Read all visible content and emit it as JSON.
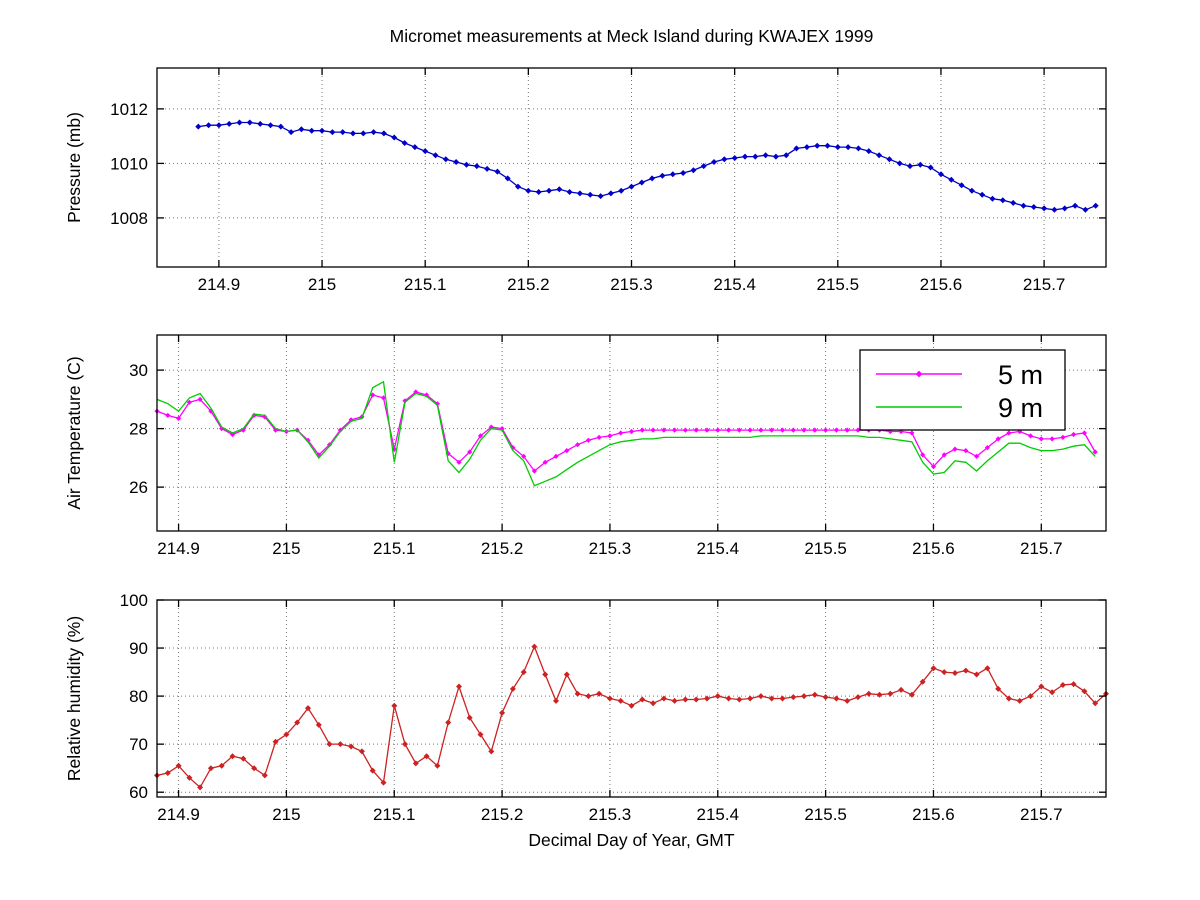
{
  "figure": {
    "title": "Micromet measurements at Meck Island during KWAJEX 1999",
    "xlabel": "Decimal Day of Year, GMT",
    "background_color": "#FFFFFF",
    "text_color": "#000000"
  },
  "chart_data": [
    {
      "name": "pressure",
      "type": "line",
      "ylabel": "Pressure (mb)",
      "xlim": [
        214.84,
        215.76
      ],
      "ylim": [
        1006.2,
        1013.5
      ],
      "xticks": [
        214.9,
        215,
        215.1,
        215.2,
        215.3,
        215.4,
        215.5,
        215.6,
        215.7
      ],
      "xtick_labels": [
        "214.9",
        "215",
        "215.1",
        "215.2",
        "215.3",
        "215.4",
        "215.5",
        "215.6",
        "215.7"
      ],
      "yticks": [
        1008,
        1010,
        1012
      ],
      "ytick_labels": [
        "1008",
        "1010",
        "1012"
      ],
      "grid": true,
      "legend": null,
      "series": [
        {
          "key": "pressure",
          "label": "Pressure",
          "color": "#0000C8",
          "marker": "diamond",
          "marker_size": 3,
          "x_start": 214.88,
          "x_step": 0.01,
          "values": [
            1011.35,
            1011.4,
            1011.4,
            1011.45,
            1011.5,
            1011.5,
            1011.45,
            1011.4,
            1011.35,
            1011.15,
            1011.25,
            1011.2,
            1011.2,
            1011.15,
            1011.15,
            1011.1,
            1011.1,
            1011.15,
            1011.1,
            1010.95,
            1010.75,
            1010.6,
            1010.45,
            1010.3,
            1010.15,
            1010.05,
            1009.95,
            1009.9,
            1009.8,
            1009.7,
            1009.45,
            1009.15,
            1009.0,
            1008.95,
            1009.0,
            1009.05,
            1008.95,
            1008.9,
            1008.85,
            1008.8,
            1008.9,
            1009.0,
            1009.15,
            1009.3,
            1009.45,
            1009.55,
            1009.6,
            1009.65,
            1009.75,
            1009.9,
            1010.05,
            1010.15,
            1010.2,
            1010.25,
            1010.25,
            1010.3,
            1010.25,
            1010.3,
            1010.55,
            1010.6,
            1010.65,
            1010.65,
            1010.6,
            1010.6,
            1010.55,
            1010.45,
            1010.3,
            1010.15,
            1010.0,
            1009.9,
            1009.95,
            1009.85,
            1009.6,
            1009.4,
            1009.2,
            1009.0,
            1008.85,
            1008.7,
            1008.65,
            1008.55,
            1008.45,
            1008.4,
            1008.35,
            1008.3,
            1008.35,
            1008.45,
            1008.3,
            1008.45
          ]
        }
      ]
    },
    {
      "name": "air-temperature",
      "type": "line",
      "ylabel": "Air Temperature (C)",
      "xlim": [
        214.88,
        215.76
      ],
      "ylim": [
        24.5,
        31.2
      ],
      "xticks": [
        214.9,
        215,
        215.1,
        215.2,
        215.3,
        215.4,
        215.5,
        215.6,
        215.7
      ],
      "xtick_labels": [
        "214.9",
        "215",
        "215.1",
        "215.2",
        "215.3",
        "215.4",
        "215.5",
        "215.6",
        "215.7"
      ],
      "yticks": [
        26,
        28,
        30
      ],
      "ytick_labels": [
        "26",
        "28",
        "30"
      ],
      "grid": true,
      "legend": [
        {
          "label": "5 m",
          "color": "#FF00FF",
          "marker": "diamond"
        },
        {
          "label": "9 m",
          "color": "#00CC00",
          "marker": null
        }
      ],
      "series": [
        {
          "key": "temp-5m",
          "label": "5 m",
          "color": "#FF00FF",
          "marker": "diamond",
          "marker_size": 2.6,
          "x_start": 214.88,
          "x_step": 0.01,
          "values": [
            28.6,
            28.45,
            28.35,
            28.9,
            29.0,
            28.6,
            28.0,
            27.8,
            27.95,
            28.45,
            28.4,
            27.95,
            27.9,
            27.95,
            27.6,
            27.1,
            27.45,
            27.95,
            28.3,
            28.4,
            29.15,
            29.05,
            27.3,
            28.95,
            29.25,
            29.15,
            28.85,
            27.15,
            26.85,
            27.2,
            27.75,
            28.05,
            28.0,
            27.35,
            27.05,
            26.55,
            26.85,
            27.05,
            27.25,
            27.45,
            27.6,
            27.7,
            27.75,
            27.85,
            27.9,
            27.95,
            27.95,
            27.95,
            27.95,
            27.95,
            27.95,
            27.95,
            27.95,
            27.95,
            27.95,
            27.95,
            27.95,
            27.95,
            27.95,
            27.95,
            27.95,
            27.95,
            27.95,
            27.95,
            27.95,
            27.95,
            27.95,
            27.95,
            27.9,
            27.9,
            27.85,
            27.1,
            26.7,
            27.1,
            27.3,
            27.25,
            27.05,
            27.35,
            27.65,
            27.85,
            27.9,
            27.75,
            27.65,
            27.65,
            27.7,
            27.8,
            27.85,
            27.2
          ]
        },
        {
          "key": "temp-9m",
          "label": "9 m",
          "color": "#00CC00",
          "marker": null,
          "marker_size": 0,
          "x_start": 214.88,
          "x_step": 0.01,
          "values": [
            29.0,
            28.85,
            28.6,
            29.05,
            29.2,
            28.7,
            28.05,
            27.85,
            28.0,
            28.5,
            28.45,
            28.0,
            27.9,
            27.95,
            27.55,
            27.0,
            27.4,
            27.9,
            28.25,
            28.35,
            29.4,
            29.6,
            26.85,
            28.9,
            29.2,
            29.1,
            28.8,
            26.9,
            26.5,
            26.95,
            27.6,
            28.0,
            27.95,
            27.25,
            26.9,
            26.05,
            26.2,
            26.35,
            26.6,
            26.85,
            27.05,
            27.25,
            27.45,
            27.55,
            27.6,
            27.65,
            27.65,
            27.7,
            27.7,
            27.7,
            27.7,
            27.7,
            27.7,
            27.7,
            27.7,
            27.7,
            27.75,
            27.75,
            27.75,
            27.75,
            27.75,
            27.75,
            27.75,
            27.75,
            27.75,
            27.75,
            27.7,
            27.7,
            27.65,
            27.6,
            27.55,
            26.85,
            26.45,
            26.5,
            26.9,
            26.85,
            26.55,
            26.9,
            27.2,
            27.5,
            27.5,
            27.35,
            27.25,
            27.25,
            27.3,
            27.4,
            27.45,
            27.05
          ]
        }
      ]
    },
    {
      "name": "relative-humidity",
      "type": "line",
      "ylabel": "Relative humidity (%)",
      "xlim": [
        214.88,
        215.76
      ],
      "ylim": [
        59,
        100
      ],
      "xticks": [
        214.9,
        215,
        215.1,
        215.2,
        215.3,
        215.4,
        215.5,
        215.6,
        215.7
      ],
      "xtick_labels": [
        "214.9",
        "215",
        "215.1",
        "215.2",
        "215.3",
        "215.4",
        "215.5",
        "215.6",
        "215.7"
      ],
      "yticks": [
        60,
        70,
        80,
        90,
        100
      ],
      "ytick_labels": [
        "60",
        "70",
        "80",
        "90",
        "100"
      ],
      "grid": true,
      "legend": null,
      "series": [
        {
          "key": "relative-humidity",
          "label": "Relative humidity",
          "color": "#CC2222",
          "marker": "diamond",
          "marker_size": 3,
          "x_start": 214.88,
          "x_step": 0.01,
          "values": [
            63.5,
            64.0,
            65.5,
            63.0,
            61.0,
            65.0,
            65.5,
            67.5,
            67.0,
            65.0,
            63.5,
            70.5,
            72.0,
            74.5,
            77.5,
            74.0,
            70.0,
            70.0,
            69.5,
            68.5,
            64.5,
            62.0,
            78.0,
            70.0,
            66.0,
            67.5,
            65.5,
            74.5,
            82.0,
            75.5,
            72.0,
            68.5,
            76.5,
            81.5,
            85.0,
            90.3,
            84.5,
            79.0,
            84.5,
            80.5,
            80.0,
            80.5,
            79.5,
            79.0,
            78.0,
            79.3,
            78.5,
            79.5,
            79.0,
            79.3,
            79.3,
            79.5,
            80.0,
            79.5,
            79.3,
            79.5,
            80.0,
            79.5,
            79.5,
            79.8,
            80.0,
            80.3,
            79.8,
            79.5,
            79.0,
            79.8,
            80.5,
            80.3,
            80.5,
            81.3,
            80.3,
            83.0,
            85.8,
            85.0,
            84.8,
            85.3,
            84.5,
            85.8,
            81.5,
            79.5,
            79.0,
            80.0,
            82.0,
            80.8,
            82.3,
            82.5,
            81.0,
            78.5,
            80.5
          ]
        }
      ]
    }
  ]
}
